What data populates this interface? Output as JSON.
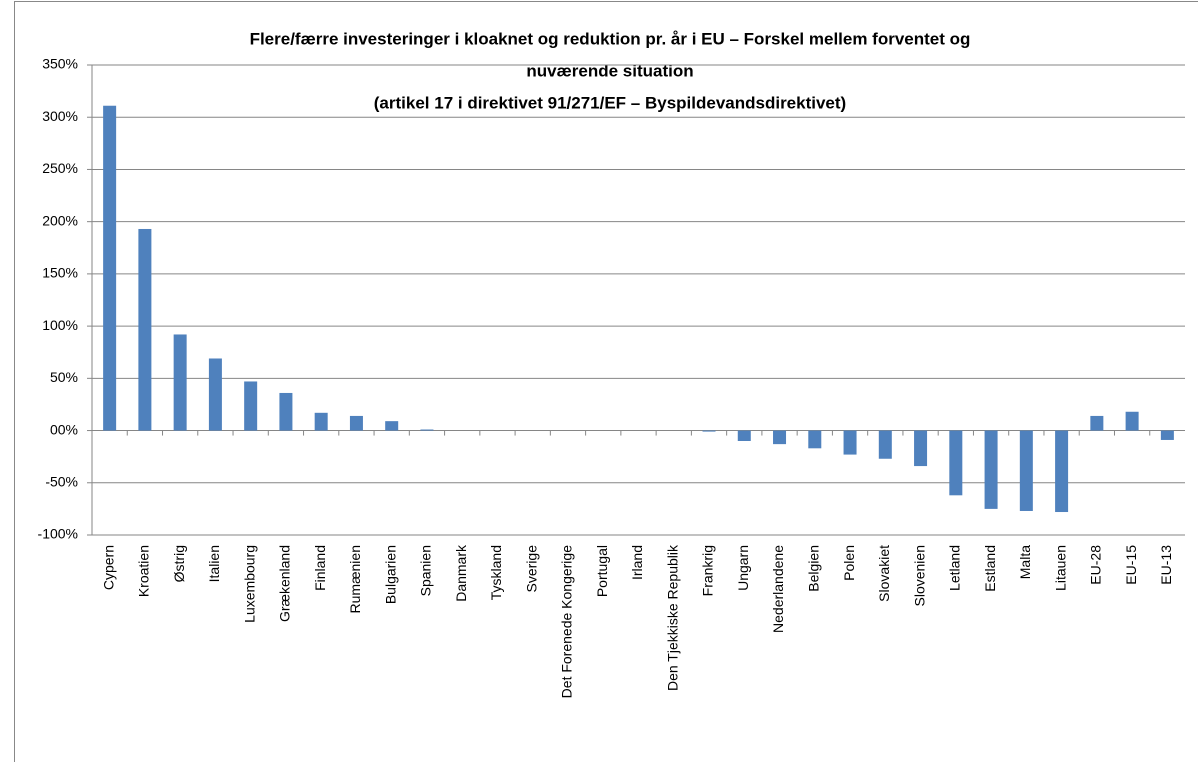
{
  "chart_data": {
    "type": "bar",
    "title": [
      "Flere/færre investeringer i kloaknet og reduktion  pr. år i EU – Forskel mellem forventet og",
      "nuværende situation",
      "(artikel 17 i direktivet 91/271/EF – Byspildevandsdirektivet)"
    ],
    "categories": [
      "Cypern",
      "Kroatien",
      "Østrig",
      "Italien",
      "Luxembourg",
      "Grækenland",
      "Finland",
      "Rumænien",
      "Bulgarien",
      "Spanien",
      "Danmark",
      "Tyskland",
      "Sverige",
      "Det Forenede Kongerige",
      "Portugal",
      "Irland",
      "Den Tjekkiske Republik",
      "Frankrig",
      "Ungarn",
      "Nederlandene",
      "Belgien",
      "Polen",
      "Slovakiet",
      "Slovenien",
      "Letland",
      "Estland",
      "Malta",
      "Litauen",
      "EU-28",
      "EU-15",
      "EU-13"
    ],
    "values": [
      311,
      193,
      92,
      69,
      47,
      36,
      17,
      14,
      9,
      1,
      0,
      0,
      0,
      0,
      0,
      0,
      0,
      -1,
      -10,
      -13,
      -17,
      -23,
      -27,
      -34,
      -62,
      -75,
      -77,
      -78,
      14,
      18,
      -9
    ],
    "color": "#4f81bd",
    "ylim": [
      -100,
      350
    ],
    "yticks": [
      {
        "value": -100,
        "label": "-100%"
      },
      {
        "value": -50,
        "label": "-50%"
      },
      {
        "value": 0,
        "label": "00%"
      },
      {
        "value": 50,
        "label": "50%"
      },
      {
        "value": 100,
        "label": "100%"
      },
      {
        "value": 150,
        "label": "150%"
      },
      {
        "value": 200,
        "label": "200%"
      },
      {
        "value": 250,
        "label": "250%"
      },
      {
        "value": 300,
        "label": "300%"
      },
      {
        "value": 350,
        "label": "350%"
      }
    ],
    "grid": true
  }
}
